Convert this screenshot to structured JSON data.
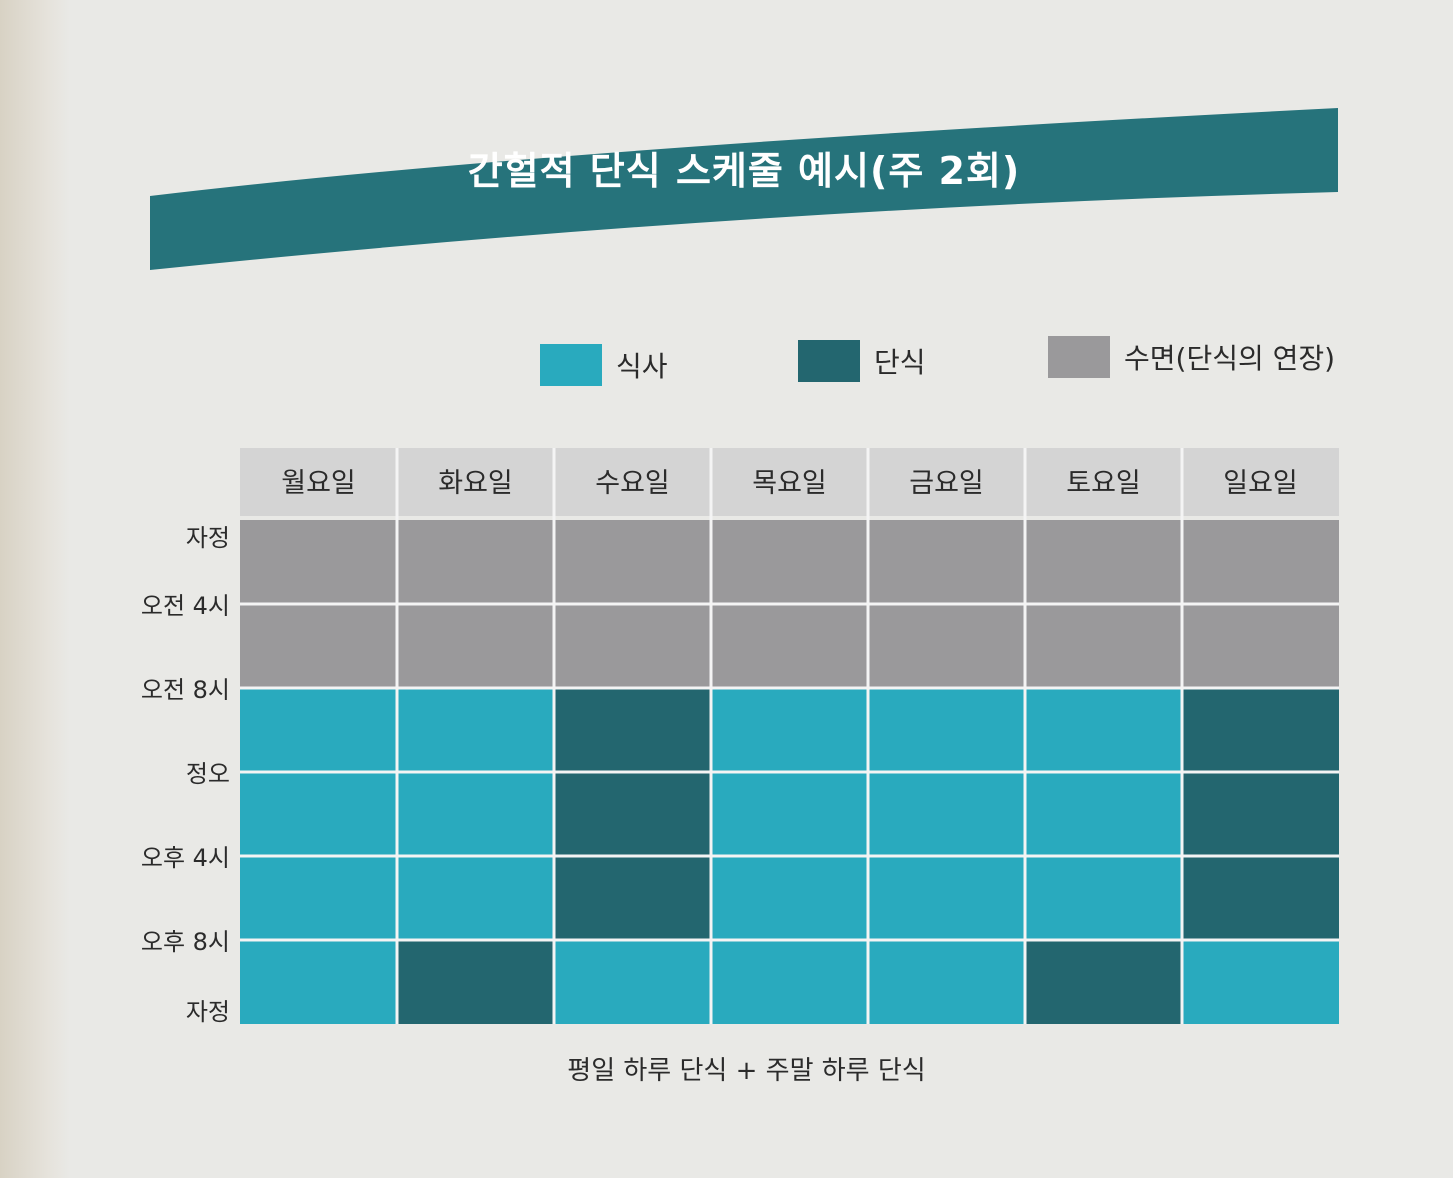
{
  "title": "간헐적 단식 스케줄 예시(주 2회)",
  "legend": [
    {
      "label": "식사",
      "color": "#29aabe"
    },
    {
      "label": "단식",
      "color": "#23666f"
    },
    {
      "label": "수면(단식의 연장)",
      "color": "#9a999b"
    }
  ],
  "caption": "평일 하루 단식 + 주말 하루 단식",
  "colors": {
    "banner": "#26737b",
    "header_bg": "#d4d4d4",
    "grid_line": "#f4f4f4"
  },
  "chart_data": {
    "type": "heatmap",
    "title": "간헐적 단식 스케줄 예시(주 2회)",
    "x_categories": [
      "월요일",
      "화요일",
      "수요일",
      "목요일",
      "금요일",
      "토요일",
      "일요일"
    ],
    "y_tick_labels": [
      "자정",
      "오전 4시",
      "오전 8시",
      "정오",
      "오후 4시",
      "오후 8시",
      "자정"
    ],
    "y_unit": "time of day",
    "legend": [
      "식사",
      "단식",
      "수면(단식의 연장)"
    ],
    "blocks": [
      {
        "day": "월요일",
        "segments": [
          {
            "from": 0,
            "to": 8,
            "state": "수면(단식의 연장)"
          },
          {
            "from": 8,
            "to": 24,
            "state": "식사"
          }
        ]
      },
      {
        "day": "화요일",
        "segments": [
          {
            "from": 0,
            "to": 8,
            "state": "수면(단식의 연장)"
          },
          {
            "from": 8,
            "to": 20,
            "state": "식사"
          },
          {
            "from": 20,
            "to": 24,
            "state": "단식"
          }
        ]
      },
      {
        "day": "수요일",
        "segments": [
          {
            "from": 0,
            "to": 8,
            "state": "수면(단식의 연장)"
          },
          {
            "from": 8,
            "to": 20,
            "state": "단식"
          },
          {
            "from": 20,
            "to": 24,
            "state": "식사"
          }
        ]
      },
      {
        "day": "목요일",
        "segments": [
          {
            "from": 0,
            "to": 8,
            "state": "수면(단식의 연장)"
          },
          {
            "from": 8,
            "to": 24,
            "state": "식사"
          }
        ]
      },
      {
        "day": "금요일",
        "segments": [
          {
            "from": 0,
            "to": 8,
            "state": "수면(단식의 연장)"
          },
          {
            "from": 8,
            "to": 24,
            "state": "식사"
          }
        ]
      },
      {
        "day": "토요일",
        "segments": [
          {
            "from": 0,
            "to": 8,
            "state": "수면(단식의 연장)"
          },
          {
            "from": 8,
            "to": 20,
            "state": "식사"
          },
          {
            "from": 20,
            "to": 24,
            "state": "단식"
          }
        ]
      },
      {
        "day": "일요일",
        "segments": [
          {
            "from": 0,
            "to": 8,
            "state": "수면(단식의 연장)"
          },
          {
            "from": 8,
            "to": 20,
            "state": "단식"
          },
          {
            "from": 20,
            "to": 24,
            "state": "식사"
          }
        ]
      }
    ],
    "grid": true
  }
}
